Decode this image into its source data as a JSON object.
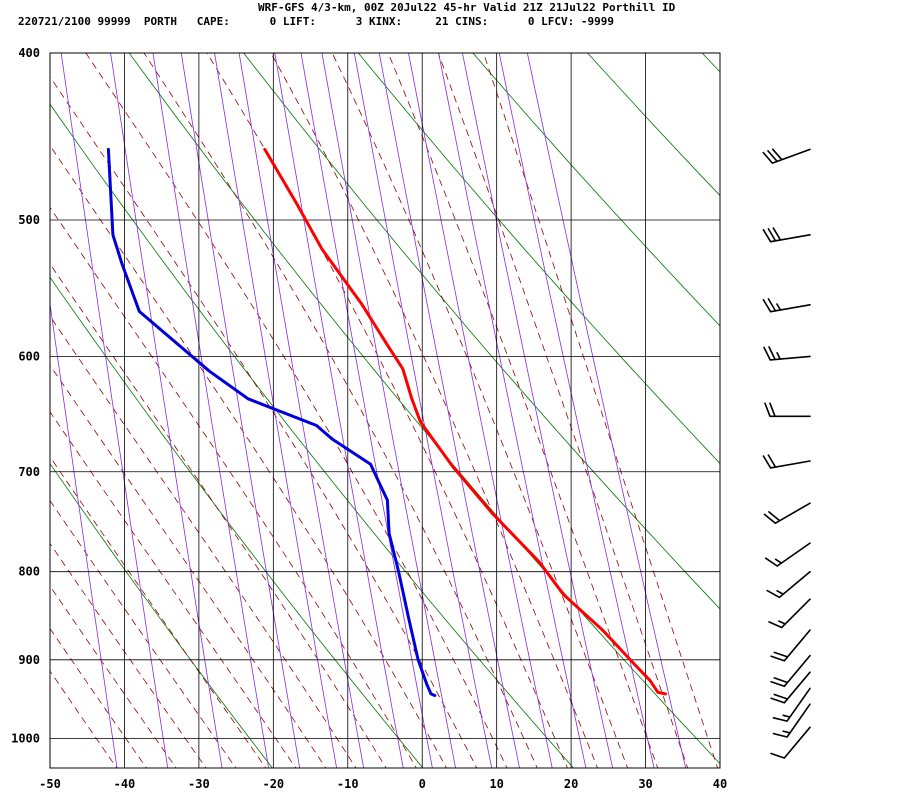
{
  "header": {
    "line1": "WRF-GFS 4/3-km, 00Z 20Jul22 45-hr Valid 21Z 21Jul22 Porthill ID",
    "line2": "220721/2100 99999  PORTH   CAPE:      0 LIFT:      3 KINX:     21 CINS:      0 LFCV: -9999"
  },
  "chart_data": {
    "type": "line",
    "title": "",
    "xlabel": "",
    "ylabel": "",
    "x_axis": {
      "xlim": [
        -50,
        40
      ],
      "ticks": [
        -50,
        -40,
        -30,
        -20,
        -10,
        0,
        10,
        20,
        30,
        40
      ],
      "tick_labels": [
        "-50",
        "-40",
        "-30",
        "-20",
        "-10",
        "0",
        "10",
        "20",
        "30",
        "40"
      ]
    },
    "y_axis": {
      "scale": "log",
      "inverted": true,
      "ylim": [
        1040,
        400
      ],
      "ticks": [
        400,
        500,
        600,
        700,
        800,
        900,
        1000
      ],
      "tick_labels": [
        "400",
        "500",
        "600",
        "700",
        "800",
        "900",
        "1000"
      ]
    },
    "grid": true,
    "skew_t": true,
    "series": [
      {
        "color": "#ff0000",
        "points": [
          [
            -17,
            455
          ],
          [
            -13,
            490
          ],
          [
            -10,
            520
          ],
          [
            -5,
            560
          ],
          [
            -2,
            590
          ],
          [
            0,
            610
          ],
          [
            1,
            635
          ],
          [
            2,
            655
          ],
          [
            6,
            695
          ],
          [
            11,
            740
          ],
          [
            17,
            790
          ],
          [
            20,
            825
          ],
          [
            25,
            865
          ],
          [
            29,
            905
          ],
          [
            31,
            925
          ],
          [
            32,
            940
          ],
          [
            33,
            942
          ]
        ]
      },
      {
        "color": "#0000dd",
        "points": [
          [
            -38,
            455
          ],
          [
            -38,
            480
          ],
          [
            -38,
            510
          ],
          [
            -37,
            530
          ],
          [
            -35,
            565
          ],
          [
            -26,
            612
          ],
          [
            -21,
            635
          ],
          [
            -12,
            658
          ],
          [
            -10,
            670
          ],
          [
            -5,
            693
          ],
          [
            -4,
            710
          ],
          [
            -3,
            727
          ],
          [
            -3,
            760
          ],
          [
            -2,
            800
          ],
          [
            -1,
            850
          ],
          [
            0,
            900
          ],
          [
            1,
            930
          ],
          [
            1.5,
            942
          ],
          [
            2,
            944
          ]
        ]
      }
    ],
    "reference_lines": {
      "isotherm_color": "#000000",
      "isobar_color": "#000000",
      "dry_adiabat_color": "#007700",
      "moist_adiabat_color": "#990000",
      "mixing_ratio_color": "#8a2be2"
    },
    "wind_barbs": [
      {
        "pressure": 455,
        "speed_kt": 30,
        "direction_deg": 250
      },
      {
        "pressure": 510,
        "speed_kt": 30,
        "direction_deg": 260
      },
      {
        "pressure": 560,
        "speed_kt": 25,
        "direction_deg": 260
      },
      {
        "pressure": 600,
        "speed_kt": 25,
        "direction_deg": 265
      },
      {
        "pressure": 650,
        "speed_kt": 20,
        "direction_deg": 270
      },
      {
        "pressure": 690,
        "speed_kt": 20,
        "direction_deg": 260
      },
      {
        "pressure": 730,
        "speed_kt": 20,
        "direction_deg": 240
      },
      {
        "pressure": 770,
        "speed_kt": 15,
        "direction_deg": 235
      },
      {
        "pressure": 800,
        "speed_kt": 15,
        "direction_deg": 230
      },
      {
        "pressure": 830,
        "speed_kt": 15,
        "direction_deg": 225
      },
      {
        "pressure": 865,
        "speed_kt": 20,
        "direction_deg": 220
      },
      {
        "pressure": 895,
        "speed_kt": 20,
        "direction_deg": 220
      },
      {
        "pressure": 915,
        "speed_kt": 20,
        "direction_deg": 220
      },
      {
        "pressure": 935,
        "speed_kt": 15,
        "direction_deg": 215
      },
      {
        "pressure": 955,
        "speed_kt": 15,
        "direction_deg": 215
      },
      {
        "pressure": 985,
        "speed_kt": 10,
        "direction_deg": 220
      }
    ]
  }
}
